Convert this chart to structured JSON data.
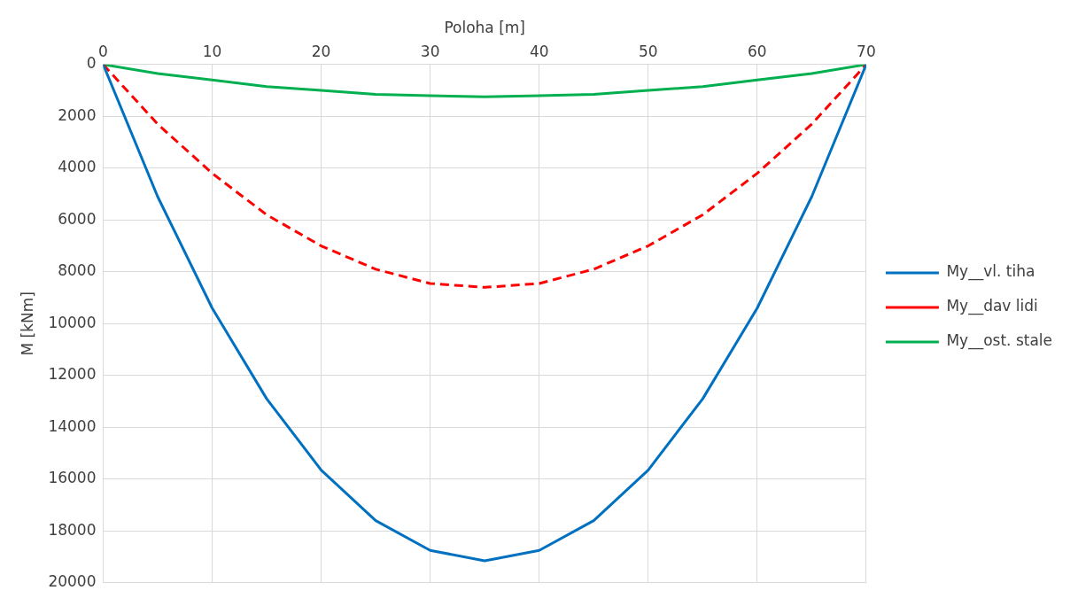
{
  "chart_data": {
    "type": "line",
    "xlabel": "Poloha [m]",
    "ylabel": "M [kNm]",
    "x": [
      0,
      5,
      10,
      15,
      20,
      25,
      30,
      35,
      40,
      45,
      50,
      55,
      60,
      65,
      70
    ],
    "series": [
      {
        "name": "My__vl. tiha",
        "color": "#0070c0",
        "values": [
          0,
          5100,
          9400,
          12900,
          15650,
          17600,
          18750,
          19150,
          18750,
          17600,
          15650,
          12900,
          9400,
          5100,
          0
        ]
      },
      {
        "name": "My__dav lidi",
        "color": "#ff0000",
        "line_style": "dashed",
        "values": [
          0,
          2300,
          4200,
          5800,
          7000,
          7900,
          8450,
          8600,
          8450,
          7900,
          7000,
          5800,
          4200,
          2300,
          0
        ]
      },
      {
        "name": "My__ost. stale",
        "color": "#00b050",
        "values": [
          0,
          350,
          600,
          850,
          1000,
          1150,
          1200,
          1250,
          1200,
          1150,
          1000,
          850,
          600,
          350,
          0
        ]
      }
    ],
    "xlim": [
      0,
      70
    ],
    "xticks": [
      0,
      10,
      20,
      30,
      40,
      50,
      60,
      70
    ],
    "ylim": [
      20000,
      0
    ],
    "yticks": [
      0,
      2000,
      4000,
      6000,
      8000,
      10000,
      12000,
      14000,
      16000,
      18000,
      20000
    ],
    "grid": true,
    "legend": "right",
    "marker": "none",
    "line_style": "solid"
  }
}
